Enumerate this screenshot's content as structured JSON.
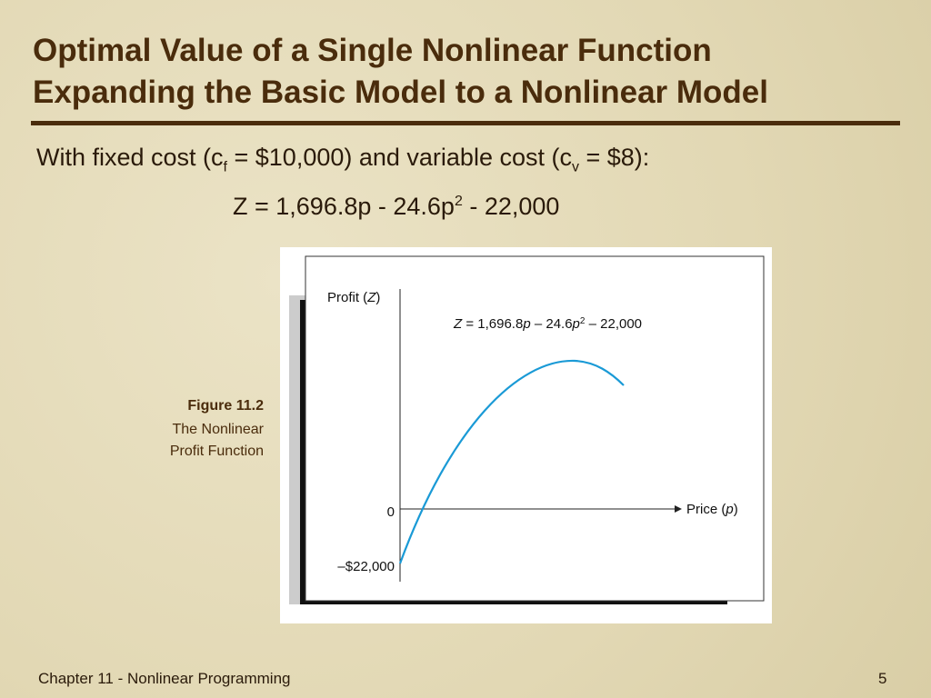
{
  "title": [
    "Optimal Value of a Single Nonlinear Function",
    "Expanding the Basic Model to a Nonlinear Model"
  ],
  "intro": [
    "With fixed cost (c",
    "f",
    " = $10,000) and variable cost (c",
    "v",
    " = $8):"
  ],
  "equation": [
    "Z = 1,696.8p - 24.6p",
    "2",
    " - 22,000"
  ],
  "figure": {
    "caption": {
      "number": "Figure 11.2",
      "lines": [
        "The Nonlinear",
        "Profit Function"
      ]
    },
    "y_label": [
      "Profit (",
      "Z",
      ")"
    ],
    "x_label": [
      "Price (",
      "p",
      ")"
    ],
    "formula": [
      "Z",
      " = 1,696.8",
      "p",
      " – 24.6",
      "p",
      "2",
      " – 22,000"
    ],
    "zero_label": "0",
    "min_label": "–$22,000"
  },
  "footer": {
    "chapter": "Chapter 11 - Nonlinear Programming",
    "page": "5"
  }
}
